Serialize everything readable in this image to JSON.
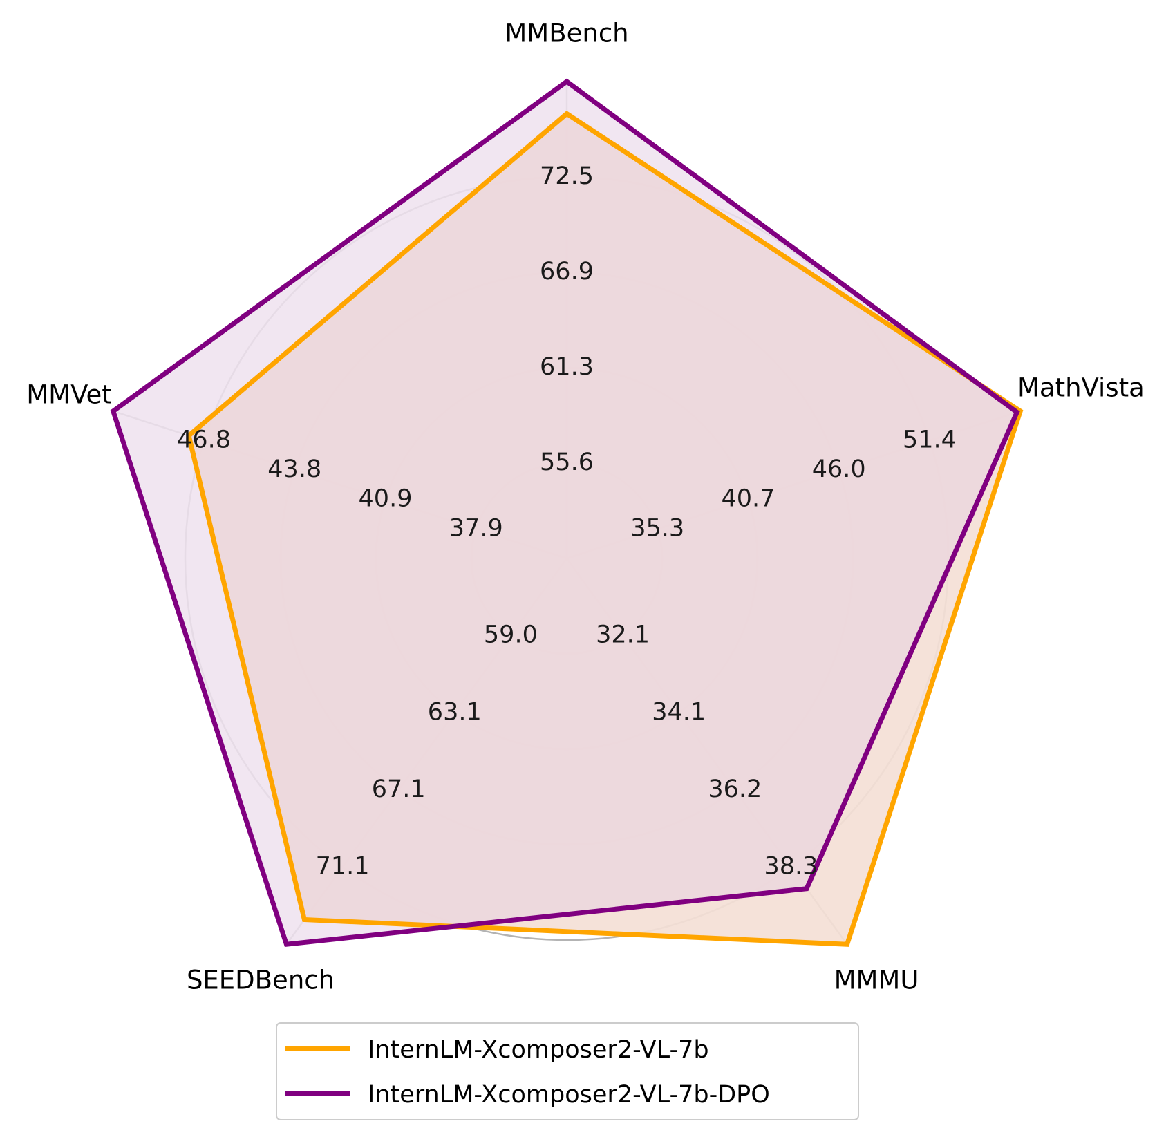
{
  "chart_data": {
    "type": "radar",
    "axes": [
      "MMBench",
      "MathVista",
      "MMMU",
      "SEEDBench",
      "MMVet"
    ],
    "axis_ticks": [
      [
        "55.6",
        "61.3",
        "66.9",
        "72.5"
      ],
      [
        "35.3",
        "40.7",
        "46.0",
        "51.4"
      ],
      [
        "32.1",
        "34.1",
        "36.2",
        "38.3"
      ],
      [
        "59.0",
        "63.1",
        "67.1",
        "71.1"
      ],
      [
        "37.9",
        "40.9",
        "43.8",
        "46.8"
      ]
    ],
    "axis_ranges": [
      [
        49.9,
        78.1
      ],
      [
        29.9,
        56.8
      ],
      [
        30.0,
        40.4
      ],
      [
        54.9,
        75.2
      ],
      [
        34.8,
        49.8
      ]
    ],
    "series": [
      {
        "name": "InternLM-Xcomposer2-VL-7b",
        "color": "#FFA500",
        "fill": "#FFF5E0",
        "values": [
          76.2,
          56.8,
          40.4,
          73.9,
          47.3
        ]
      },
      {
        "name": "InternLM-Xcomposer2-VL-7b-DPO",
        "color": "#800080",
        "fill": "#EFE2EF",
        "values": [
          78.1,
          56.6,
          38.9,
          75.2,
          49.8
        ]
      }
    ],
    "grid": true,
    "legend_position": "bottom-center"
  }
}
